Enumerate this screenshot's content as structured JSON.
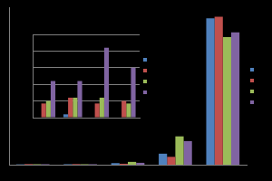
{
  "chart_data": [
    {
      "type": "bar",
      "categories": [
        null,
        null,
        null,
        null,
        null
      ],
      "series": [
        {
          "color": "#4f81bd",
          "values": [
            0.2,
            0.3,
            1,
            7,
            93
          ]
        },
        {
          "color": "#c0504d",
          "values": [
            0.4,
            0.4,
            0.6,
            5,
            94
          ]
        },
        {
          "color": "#9bbb59",
          "values": [
            0.3,
            0.3,
            1.8,
            18,
            81
          ]
        },
        {
          "color": "#8064a2",
          "values": [
            0.3,
            0.3,
            1.2,
            15,
            84
          ]
        }
      ],
      "ylim": [
        0,
        100
      ],
      "grid": false,
      "legend": "right",
      "tick_labels": false
    },
    {
      "type": "bar",
      "categories": [
        null,
        null,
        null,
        null
      ],
      "series": [
        {
          "color": "#4f81bd",
          "values": [
            0,
            0.2,
            0,
            0
          ]
        },
        {
          "color": "#c0504d",
          "values": [
            0.85,
            1.2,
            0.85,
            1.0
          ]
        },
        {
          "color": "#9bbb59",
          "values": [
            1.0,
            1.2,
            1.2,
            0.85
          ]
        },
        {
          "color": "#8064a2",
          "values": [
            2.2,
            2.2,
            4.2,
            3.0
          ]
        }
      ],
      "ylim": [
        0,
        5
      ],
      "yticks": [
        0,
        1,
        2,
        3,
        4,
        5
      ],
      "grid": true,
      "legend": "right",
      "tick_labels": false
    }
  ]
}
